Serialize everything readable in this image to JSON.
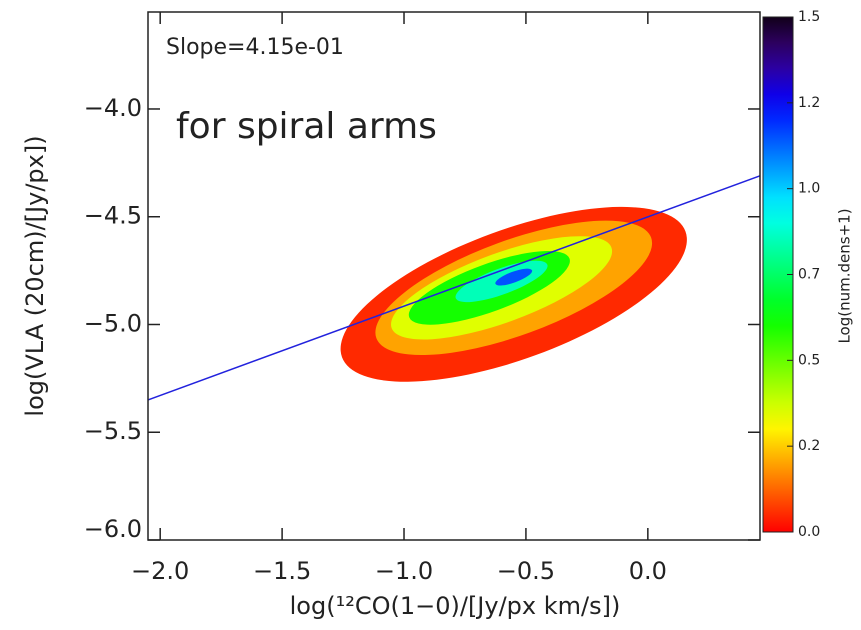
{
  "chart_data": {
    "type": "density",
    "annotations": [
      "Slope=4.15e-01",
      "for spiral arms"
    ],
    "x_label": "log(¹²CO(1−0)/[Jy/px km/s])",
    "y_label": "log(VLA (20cm)/[Jy/px])",
    "colorbar_label": "Log(num.dens+1)",
    "xlim": [
      -2.05,
      0.46
    ],
    "ylim": [
      -6.0,
      -3.55
    ],
    "xticks": [
      {
        "value": -2,
        "label": "−2.0"
      },
      {
        "value": -1.5,
        "label": "−1.5"
      },
      {
        "value": -1,
        "label": "−1.0"
      },
      {
        "value": -0.5,
        "label": "−0.5"
      },
      {
        "value": 0,
        "label": "0.0"
      }
    ],
    "yticks": [
      {
        "value": -4,
        "label": "−4.0"
      },
      {
        "value": -4.5,
        "label": "−4.5"
      },
      {
        "value": -5,
        "label": "−5.0"
      },
      {
        "value": -5.5,
        "label": "−5.5"
      },
      {
        "value": -6,
        "label": "−6.0"
      }
    ],
    "clim": [
      0,
      1.5
    ],
    "cticks": [
      {
        "value": 0,
        "label": "0.0"
      },
      {
        "value": 0.25,
        "label": "0.2"
      },
      {
        "value": 0.5,
        "label": "0.5"
      },
      {
        "value": 0.75,
        "label": "0.7"
      },
      {
        "value": 1,
        "label": "1.0"
      },
      {
        "value": 1.25,
        "label": "1.2"
      },
      {
        "value": 1.5,
        "label": "1.5"
      }
    ],
    "density": [
      {
        "x": -0.55,
        "y": -4.86,
        "rx": 0.75,
        "ry": 0.3,
        "level": 0.05
      },
      {
        "x": -0.55,
        "y": -4.83,
        "rx": 0.6,
        "ry": 0.22,
        "level": 0.2
      },
      {
        "x": -0.6,
        "y": -4.83,
        "rx": 0.48,
        "ry": 0.16,
        "level": 0.35
      },
      {
        "x": -0.65,
        "y": -4.83,
        "rx": 0.35,
        "ry": 0.11,
        "level": 0.6
      },
      {
        "x": -0.6,
        "y": -4.8,
        "rx": 0.2,
        "ry": 0.06,
        "level": 0.85
      },
      {
        "x": -0.55,
        "y": -4.78,
        "rx": 0.08,
        "ry": 0.025,
        "level": 1.15
      }
    ],
    "fit": {
      "x": [
        -2.05,
        0.46
      ],
      "values": [
        -5.35,
        -4.31
      ],
      "color": "#2222dd"
    }
  }
}
